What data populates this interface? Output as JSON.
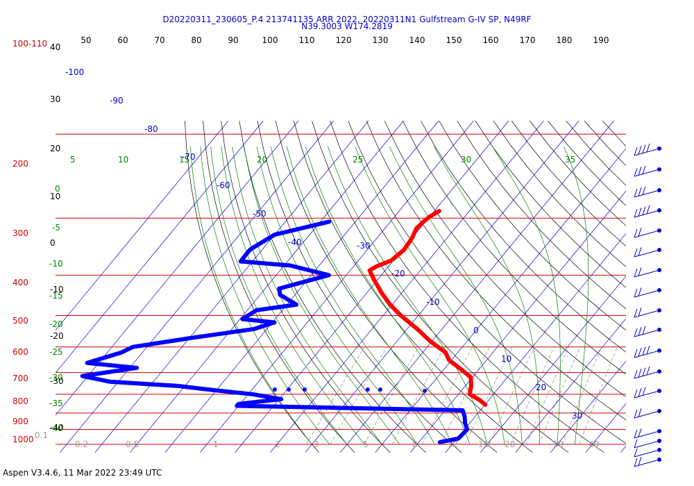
{
  "header": {
    "line1": "D20220311_230605_P.4 213741135 ARR 2022, 20220311N1 Gulfstream G-IV SP, N49RF",
    "line2": "N39.3003 W174.2819"
  },
  "footer": {
    "text": "Aspen V3.4.6, 11 Mar 2022  23:49 UTC"
  },
  "colors": {
    "isobar": "#cc0000",
    "isotherm": "#0000cc",
    "dry_adiabat": "#000000",
    "moist_adiabat": "#008000",
    "mixing_ratio": "#888888",
    "temperature": "#ff0000",
    "dewpoint": "#0000ff",
    "wind": "#0000cc"
  },
  "chart_data": {
    "type": "skew-t log-p sounding",
    "y_scale": "log pressure",
    "pressure_labels": [
      "100-110",
      "200",
      "300",
      "400",
      "500",
      "600",
      "700",
      "800",
      "900",
      "1000"
    ],
    "top_x_ticks": [
      "50",
      "60",
      "70",
      "80",
      "90",
      "100",
      "110",
      "120",
      "130",
      "140",
      "150",
      "160",
      "170",
      "180",
      "190"
    ],
    "left_ticks": [
      "40",
      "30",
      "20",
      "10",
      "0",
      "-10",
      "-20",
      "-30",
      "-40"
    ],
    "isotherm_labels": [
      "-100",
      "-90",
      "-80",
      "-70",
      "-60",
      "-50",
      "-40",
      "-30",
      "-20",
      "-10",
      "0",
      "10",
      "20",
      "30"
    ],
    "moist_labels": [
      "5",
      "10",
      "15",
      "20",
      "25",
      "30",
      "35",
      "0",
      "-5",
      "-10",
      "-15",
      "-20",
      "-25",
      "-30",
      "-35",
      "-40"
    ],
    "mixing_ratio_labels": [
      "0.1",
      "0.2",
      "0.5",
      "1",
      "2",
      "3",
      "5",
      "8",
      "12",
      "16",
      "20",
      "30",
      "40"
    ],
    "temperature_series": {
      "pressure_hpa": [
        190,
        198,
        205,
        215,
        230,
        250,
        270,
        282,
        290,
        310,
        340,
        370,
        400,
        440,
        480,
        520,
        550,
        580,
        620,
        660,
        700,
        730,
        755
      ],
      "temp_c": [
        -58.6,
        -60,
        -60.6,
        -61,
        -60,
        -59.5,
        -60.6,
        -63.5,
        -64.5,
        -61,
        -55.8,
        -50.6,
        -44.9,
        -37.1,
        -30.5,
        -23.5,
        -20.6,
        -16,
        -10.5,
        -8.3,
        -6.8,
        -2.5,
        0.2
      ]
    },
    "dewpoint_series": {
      "pressure_hpa": [
        205,
        225,
        250,
        272,
        280,
        300,
        330,
        345,
        370,
        385,
        410,
        420,
        440,
        470,
        500,
        520,
        560,
        580,
        615,
        640,
        660,
        680,
        700,
        725,
        750,
        760,
        785,
        820,
        860,
        900,
        960,
        985
      ],
      "dewpoint_c": [
        -87.5,
        -100,
        -103.5,
        -103.4,
        -88.3,
        -75,
        -86,
        -84.3,
        -77.3,
        -87.4,
        -89.3,
        -79.4,
        -83.6,
        -100,
        -114,
        -116,
        -123.3,
        -108,
        -121.6,
        -112.5,
        -92,
        -80.9,
        -68.8,
        -59.4,
        -70.5,
        -70.5,
        -5,
        -3,
        -1.3,
        0.8,
        0.4,
        -4
      ]
    },
    "moist_levels_c": [
      -40,
      -35,
      -30,
      -25,
      -20,
      -15,
      -10,
      -5,
      0,
      5,
      10,
      15,
      20,
      25,
      30,
      35
    ],
    "dry_levels_c": [
      -40,
      -30,
      -20,
      -10,
      0,
      10,
      20,
      30,
      40,
      50,
      60,
      70,
      80,
      90,
      100,
      110,
      120,
      130,
      140,
      150,
      160,
      170,
      180,
      190
    ],
    "wind_barbs": {
      "pressure_hpa": [
        170,
        200,
        230,
        265,
        305,
        355,
        400,
        465,
        520,
        575,
        630,
        690,
        750,
        815,
        885,
        940,
        975,
        1000
      ],
      "speed_kt": [
        40,
        30,
        30,
        40,
        20,
        20,
        15,
        15,
        15,
        25,
        35,
        35,
        25,
        20,
        15,
        10,
        10,
        15
      ]
    }
  }
}
